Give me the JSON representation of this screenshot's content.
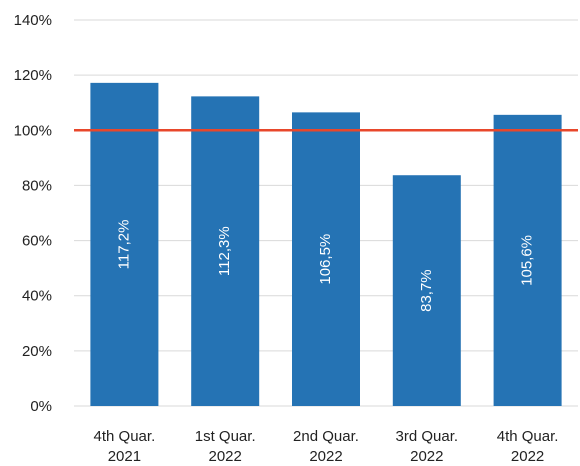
{
  "chart_data": {
    "type": "bar",
    "categories": [
      [
        "4th Quar.",
        "2021"
      ],
      [
        "1st Quar.",
        "2022"
      ],
      [
        "2nd Quar.",
        "2022"
      ],
      [
        "3rd Quar.",
        "2022"
      ],
      [
        "4th Quar.",
        "2022"
      ]
    ],
    "values": [
      117.2,
      112.3,
      106.5,
      83.7,
      105.6
    ],
    "data_labels": [
      "117,2%",
      "112,3%",
      "106,5%",
      "83,7%",
      "105,6%"
    ],
    "yticks": [
      0,
      20,
      40,
      60,
      80,
      100,
      120,
      140
    ],
    "ytick_labels": [
      "0%",
      "20%",
      "40%",
      "60%",
      "80%",
      "100%",
      "120%",
      "140%"
    ],
    "ylim": [
      0,
      140
    ],
    "reference_line": {
      "value": 100,
      "color": "#e8472b"
    },
    "grid": true,
    "title": "",
    "xlabel": "",
    "ylabel": "",
    "colors": {
      "bar": "#2573b4",
      "grid": "#d9d9d9",
      "text": "#222222",
      "label": "#ffffff"
    }
  }
}
